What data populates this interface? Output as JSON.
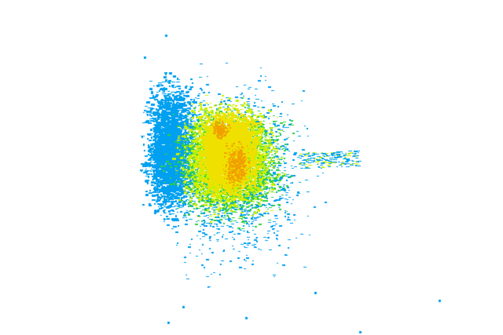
{
  "map": {
    "layer": "intensity-overlay",
    "background": "#ffffff",
    "palette": {
      "low": "#00a0f0",
      "low_mid": "#30d040",
      "mid": "#c8f000",
      "high": "#f0e000",
      "very_high": "#f0a000"
    }
  }
}
